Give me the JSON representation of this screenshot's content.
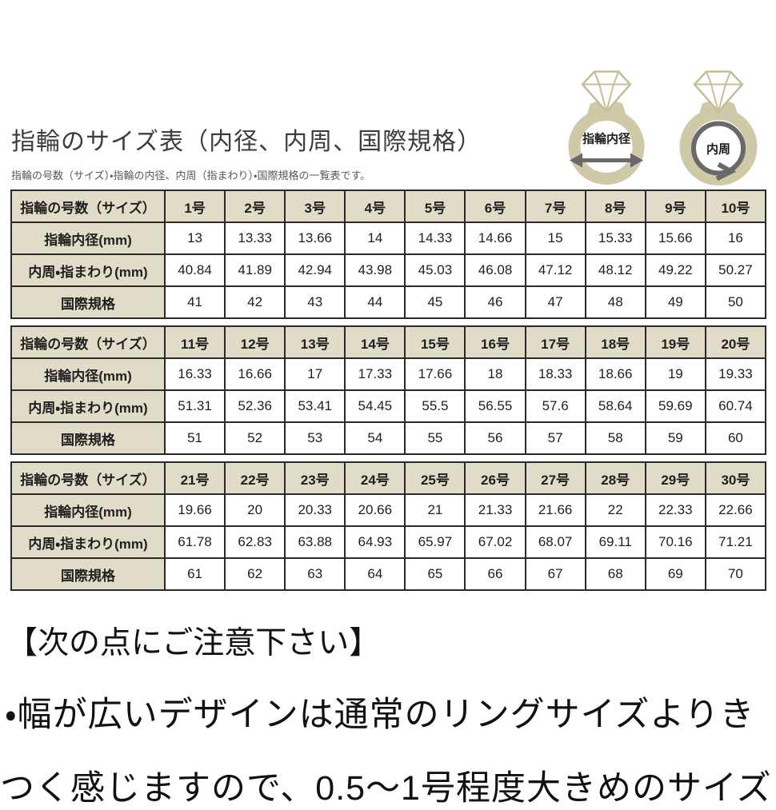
{
  "page": {
    "title": "指輪のサイズ表（内径、内周、国際規格）",
    "subtitle": "指輪の号数（サイズ）・指輪の内径、内周（指まわり）・国際規格の一覧表です。"
  },
  "diagram": {
    "left_ring_label": "指輪内径",
    "right_ring_label": "内周",
    "band_color": "#cfc9a7",
    "diamond_color": "#c3be96",
    "arrow_color": "#696969"
  },
  "table": {
    "header_label": "指輪の号数（サイズ）",
    "row_labels": [
      "指輪内径(mm)",
      "内周・指まわり(mm)",
      "国際規格"
    ],
    "header_bg": "#e1dcc7",
    "border_color": "#2a2a2a"
  },
  "tables": [
    {
      "sizes": [
        "1号",
        "2号",
        "3号",
        "4号",
        "5号",
        "6号",
        "7号",
        "8号",
        "9号",
        "10号"
      ],
      "inner_diameter": [
        "13",
        "13.33",
        "13.66",
        "14",
        "14.33",
        "14.66",
        "15",
        "15.33",
        "15.66",
        "16"
      ],
      "circumference": [
        "40.84",
        "41.89",
        "42.94",
        "43.98",
        "45.03",
        "46.08",
        "47.12",
        "48.12",
        "49.22",
        "50.27"
      ],
      "international": [
        "41",
        "42",
        "43",
        "44",
        "45",
        "46",
        "47",
        "48",
        "49",
        "50"
      ]
    },
    {
      "sizes": [
        "11号",
        "12号",
        "13号",
        "14号",
        "15号",
        "16号",
        "17号",
        "18号",
        "19号",
        "20号"
      ],
      "inner_diameter": [
        "16.33",
        "16.66",
        "17",
        "17.33",
        "17.66",
        "18",
        "18.33",
        "18.66",
        "19",
        "19.33"
      ],
      "circumference": [
        "51.31",
        "52.36",
        "53.41",
        "54.45",
        "55.5",
        "56.55",
        "57.6",
        "58.64",
        "59.69",
        "60.74"
      ],
      "international": [
        "51",
        "52",
        "53",
        "54",
        "55",
        "56",
        "57",
        "58",
        "59",
        "60"
      ]
    },
    {
      "sizes": [
        "21号",
        "22号",
        "23号",
        "24号",
        "25号",
        "26号",
        "27号",
        "28号",
        "29号",
        "30号"
      ],
      "inner_diameter": [
        "19.66",
        "20",
        "20.33",
        "20.66",
        "21",
        "21.33",
        "21.66",
        "22",
        "22.33",
        "22.66"
      ],
      "circumference": [
        "61.78",
        "62.83",
        "63.88",
        "64.93",
        "65.97",
        "67.02",
        "68.07",
        "69.11",
        "70.16",
        "71.21"
      ],
      "international": [
        "61",
        "62",
        "63",
        "64",
        "65",
        "66",
        "67",
        "68",
        "69",
        "70"
      ]
    }
  ],
  "notice": {
    "heading": "【次の点にご注意下さい】",
    "line1": "・幅が広いデザインは通常のリングサイズよりき",
    "line2": "つく感じますので、0.5～1号程度大きめのサイズ"
  }
}
